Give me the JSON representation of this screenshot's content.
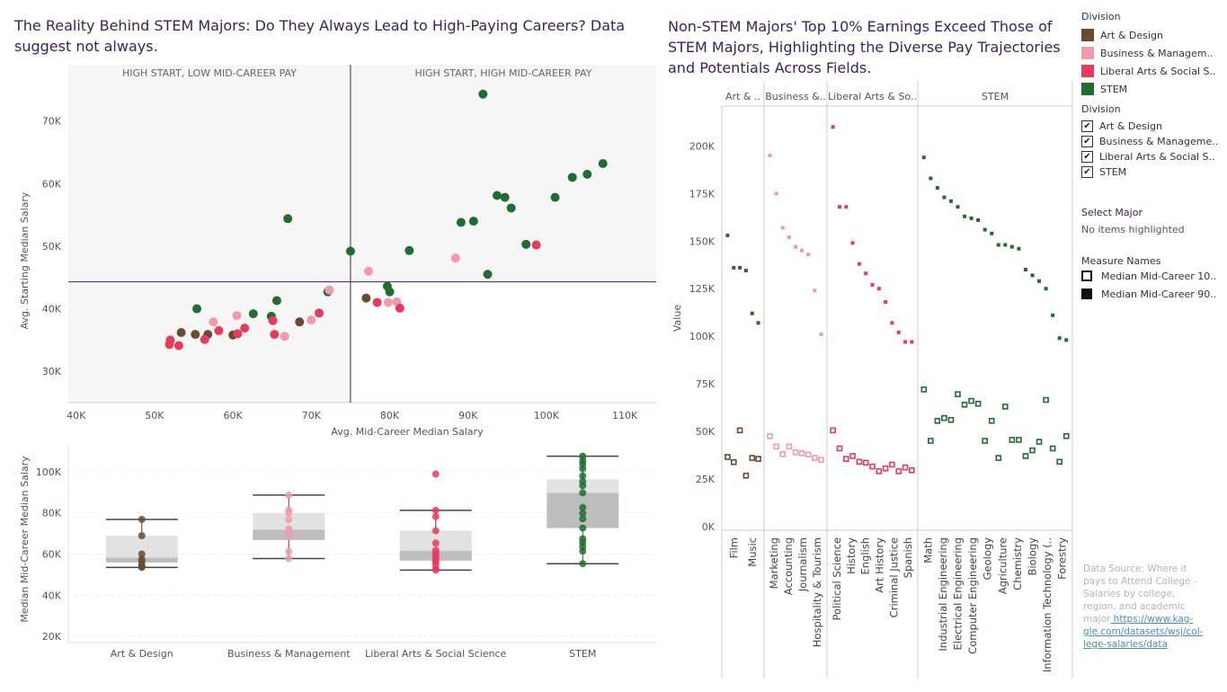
{
  "titles": {
    "left": "The Reality Behind STEM Majors: Do They Always Lead to High-Paying Careers? Data suggest not always.",
    "right": "Non-STEM Majors' Top 10% Earnings Exceed Those of STEM Majors, Highlighting the Diverse Pay Trajectories and Potentials Across Fields."
  },
  "colors": {
    "Art & Design": "#6b4a2f",
    "Business & Management": "#f29aab",
    "Liberal Arts & Social Science": "#e83a5c",
    "STEM": "#1f6e30",
    "quadrant_line": "#3b2258",
    "title": "#3b2258"
  },
  "legend": {
    "division_title": "Division",
    "items": [
      "Art & Design",
      "Business & Managem..",
      "Liberal Arts & Social S..",
      "STEM"
    ],
    "filter_title": "Division",
    "filter_items": [
      "Art & Design",
      "Business & Manageme..",
      "Liberal Arts & Social S..",
      "STEM"
    ],
    "select_major_title": "Select Major",
    "select_major_value": "No items highlighted",
    "measure_title": "Measure Names",
    "measure_items": [
      "Median Mid-Career 10..",
      "Median Mid-Career 90.."
    ]
  },
  "source": {
    "text": "Data Source: Where it pays to Attend College - Salaries by college, region, and academic major",
    "link": "https://www.kaggle.com/datasets/wsj/college-salaries/data",
    "link_display": " https://www.kag-gle.com/datasets/wsj/col-lege-salaries/data"
  },
  "chart_data": [
    {
      "type": "scatter",
      "xlabel": "Avg. Mid-Career Median Salary",
      "ylabel": "Avg. Starting Median Salary",
      "xlim": [
        39000,
        114000
      ],
      "ylim": [
        25000,
        79000
      ],
      "x_ticks": [
        40000,
        50000,
        60000,
        70000,
        80000,
        90000,
        100000,
        110000
      ],
      "x_tick_labels": [
        "40K",
        "50K",
        "60K",
        "70K",
        "80K",
        "90K",
        "100K",
        "110K"
      ],
      "y_ticks": [
        30000,
        40000,
        50000,
        60000,
        70000
      ],
      "y_tick_labels": [
        "30K",
        "40K",
        "50K",
        "60K",
        "70K"
      ],
      "reference_lines": {
        "x": 75000,
        "y": 44300
      },
      "quadrant_labels": {
        "top_left": "HIGH START, LOW MID-CAREER PAY",
        "top_right": "HIGH START, HIGH MID-CAREER PAY"
      },
      "points": [
        {
          "x": 67000,
          "y": 54400,
          "division": "STEM"
        },
        {
          "x": 91900,
          "y": 74300,
          "division": "STEM"
        },
        {
          "x": 75000,
          "y": 49200,
          "division": "STEM"
        },
        {
          "x": 79700,
          "y": 43600,
          "division": "STEM"
        },
        {
          "x": 80000,
          "y": 42700,
          "division": "STEM"
        },
        {
          "x": 82500,
          "y": 49300,
          "division": "STEM"
        },
        {
          "x": 89100,
          "y": 53800,
          "division": "STEM"
        },
        {
          "x": 90700,
          "y": 54000,
          "division": "STEM"
        },
        {
          "x": 92500,
          "y": 45500,
          "division": "STEM"
        },
        {
          "x": 93700,
          "y": 58100,
          "division": "STEM"
        },
        {
          "x": 94700,
          "y": 57800,
          "division": "STEM"
        },
        {
          "x": 95500,
          "y": 56100,
          "division": "STEM"
        },
        {
          "x": 97400,
          "y": 50300,
          "division": "STEM"
        },
        {
          "x": 101100,
          "y": 57800,
          "division": "STEM"
        },
        {
          "x": 103300,
          "y": 61000,
          "division": "STEM"
        },
        {
          "x": 105200,
          "y": 61500,
          "division": "STEM"
        },
        {
          "x": 107200,
          "y": 63200,
          "division": "STEM"
        },
        {
          "x": 55400,
          "y": 40000,
          "division": "STEM"
        },
        {
          "x": 62600,
          "y": 39200,
          "division": "STEM"
        },
        {
          "x": 64900,
          "y": 38800,
          "division": "STEM"
        },
        {
          "x": 65600,
          "y": 41300,
          "division": "STEM"
        },
        {
          "x": 72100,
          "y": 42700,
          "division": "STEM"
        },
        {
          "x": 53400,
          "y": 36200,
          "division": "Art & Design"
        },
        {
          "x": 55200,
          "y": 35900,
          "division": "Art & Design"
        },
        {
          "x": 56800,
          "y": 35900,
          "division": "Art & Design"
        },
        {
          "x": 60000,
          "y": 35800,
          "division": "Art & Design"
        },
        {
          "x": 68500,
          "y": 37900,
          "division": "Art & Design"
        },
        {
          "x": 77000,
          "y": 41700,
          "division": "Art & Design"
        },
        {
          "x": 57500,
          "y": 37900,
          "division": "Business & Management"
        },
        {
          "x": 60500,
          "y": 38900,
          "division": "Business & Management"
        },
        {
          "x": 66600,
          "y": 35600,
          "division": "Business & Management"
        },
        {
          "x": 70000,
          "y": 38200,
          "division": "Business & Management"
        },
        {
          "x": 72300,
          "y": 43000,
          "division": "Business & Management"
        },
        {
          "x": 77300,
          "y": 46000,
          "division": "Business & Management"
        },
        {
          "x": 79800,
          "y": 41000,
          "division": "Business & Management"
        },
        {
          "x": 80900,
          "y": 41100,
          "division": "Business & Management"
        },
        {
          "x": 88400,
          "y": 48100,
          "division": "Business & Management"
        },
        {
          "x": 51900,
          "y": 34300,
          "division": "Liberal Arts & Social Science"
        },
        {
          "x": 52000,
          "y": 35000,
          "division": "Liberal Arts & Social Science"
        },
        {
          "x": 53100,
          "y": 34100,
          "division": "Liberal Arts & Social Science"
        },
        {
          "x": 56400,
          "y": 35100,
          "division": "Liberal Arts & Social Science"
        },
        {
          "x": 58200,
          "y": 36500,
          "division": "Liberal Arts & Social Science"
        },
        {
          "x": 60600,
          "y": 36000,
          "division": "Liberal Arts & Social Science"
        },
        {
          "x": 61500,
          "y": 36900,
          "division": "Liberal Arts & Social Science"
        },
        {
          "x": 65100,
          "y": 38100,
          "division": "Liberal Arts & Social Science"
        },
        {
          "x": 65300,
          "y": 35900,
          "division": "Liberal Arts & Social Science"
        },
        {
          "x": 71000,
          "y": 39300,
          "division": "Liberal Arts & Social Science"
        },
        {
          "x": 78400,
          "y": 41000,
          "division": "Liberal Arts & Social Science"
        },
        {
          "x": 81300,
          "y": 40100,
          "division": "Liberal Arts & Social Science"
        },
        {
          "x": 98700,
          "y": 50200,
          "division": "Liberal Arts & Social Science"
        }
      ]
    },
    {
      "type": "box",
      "ylabel": "Median Mid-Career Median Salary",
      "ylim": [
        17000,
        113000
      ],
      "y_ticks": [
        20000,
        40000,
        60000,
        80000,
        100000
      ],
      "y_tick_labels": [
        "20K",
        "40K",
        "60K",
        "80K",
        "100K"
      ],
      "categories": [
        "Art & Design",
        "Business & Management",
        "Liberal Arts & Social Science",
        "STEM"
      ],
      "boxes": [
        {
          "category": "Art & Design",
          "min": 53500,
          "q1": 55900,
          "median": 58200,
          "q3": 68900,
          "max": 76800,
          "points": [
            76800,
            68900,
            60000,
            57500,
            56500,
            55000,
            54000,
            53500
          ]
        },
        {
          "category": "Business & Management",
          "min": 57800,
          "q1": 66800,
          "median": 71800,
          "q3": 79900,
          "max": 88600,
          "points": [
            88600,
            81400,
            79900,
            76700,
            72200,
            70000,
            68400,
            61200,
            57800
          ]
        },
        {
          "category": "Liberal Arts & Social Science",
          "min": 52200,
          "q1": 56800,
          "median": 61600,
          "q3": 71400,
          "max": 81200,
          "points": [
            98800,
            81200,
            78200,
            71300,
            65300,
            61800,
            60400,
            58900,
            57500,
            56500,
            55000,
            53000,
            52200
          ]
        },
        {
          "category": "STEM",
          "min": 55300,
          "q1": 72600,
          "median": 89700,
          "q3": 96300,
          "max": 107500,
          "points": [
            107500,
            105400,
            103700,
            101400,
            97900,
            95200,
            93200,
            89700,
            82600,
            79800,
            77100,
            72600,
            67400,
            65600,
            63600,
            61400,
            55300
          ]
        }
      ]
    },
    {
      "type": "scatter",
      "ylabel": "Value",
      "ylim": [
        -2000,
        221000
      ],
      "y_ticks": [
        0,
        25000,
        50000,
        75000,
        100000,
        125000,
        150000,
        175000,
        200000
      ],
      "y_tick_labels": [
        "0K",
        "25K",
        "50K",
        "75K",
        "100K",
        "125K",
        "150K",
        "175K",
        "200K"
      ],
      "measures": [
        "Median Mid-Career 10th Percentile (hollow)",
        "Median Mid-Career 90th Percentile (solid)"
      ],
      "panels": [
        {
          "label": "Art & ..",
          "division": "Art & Design",
          "x_labels": [
            "Film",
            "Music"
          ],
          "p90": [
            153000,
            136000,
            136000,
            134500,
            112000,
            107000
          ],
          "p10": [
            36500,
            33800,
            50500,
            26700,
            36000,
            35500
          ]
        },
        {
          "label": "Business &..",
          "division": "Business & Management",
          "x_labels": [
            "Marketing",
            "Accounting",
            "Journalism",
            "Hospitality & Tourism"
          ],
          "p90": [
            195000,
            175000,
            157000,
            152000,
            147000,
            145000,
            143000,
            124000,
            101000
          ],
          "p10": [
            47400,
            42000,
            38000,
            42000,
            39000,
            38500,
            37800,
            36000,
            35000
          ]
        },
        {
          "label": "Liberal Arts & So..",
          "division": "Liberal Arts & Social Science",
          "x_labels": [
            "Political Science",
            "History",
            "English",
            "Art History",
            "Criminal Justice",
            "Spanish"
          ],
          "p90": [
            210000,
            168000,
            168000,
            149000,
            138000,
            133000,
            127000,
            125000,
            118000,
            107000,
            102000,
            97000,
            97000
          ],
          "p10": [
            50500,
            41000,
            35500,
            37000,
            34000,
            33500,
            31500,
            29000,
            30500,
            32500,
            29000,
            31000,
            29500
          ]
        },
        {
          "label": "STEM",
          "division": "STEM",
          "x_labels": [
            "Math",
            "Industrial Engineering",
            "Electrical Engineering",
            "Computer Engineering",
            "Geology",
            "Agriculture",
            "Chemistry",
            "Biology",
            "Information Technology (..",
            "Forestry"
          ],
          "p90": [
            194000,
            183000,
            178000,
            173000,
            171000,
            168000,
            163000,
            162000,
            161000,
            156000,
            154000,
            148000,
            148000,
            147000,
            146000,
            135000,
            132000,
            129000,
            125000,
            111000,
            99000,
            98000
          ],
          "p10": [
            72000,
            45000,
            55500,
            57000,
            56000,
            69500,
            64000,
            66000,
            64500,
            45000,
            55500,
            36000,
            63000,
            45500,
            45500,
            37000,
            40000,
            44500,
            66500,
            41000,
            34000,
            47500
          ]
        }
      ]
    }
  ]
}
